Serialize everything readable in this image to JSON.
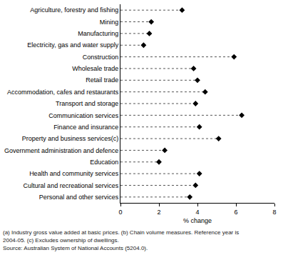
{
  "chart_data": {
    "type": "dot",
    "orientation": "horizontal",
    "x_label": "% change",
    "categories": [
      "Agriculture, forestry and fishing",
      "Mining",
      "Manufacturing",
      "Electricity, gas and water supply",
      "Construction",
      "Wholesale trade",
      "Retail trade",
      "Accommodation, cafes and restaurants",
      "Transport and storage",
      "Communication services",
      "Finance and insurance",
      "Property and business services(c)",
      "Government administration and defence",
      "Education",
      "Health and community services",
      "Cultural and recreational services",
      "Personal and other services"
    ],
    "values": [
      3.2,
      1.6,
      1.5,
      1.2,
      5.9,
      3.8,
      4.0,
      4.4,
      3.9,
      6.3,
      4.1,
      5.1,
      2.3,
      2.0,
      4.1,
      3.9,
      3.6
    ],
    "color": "#000000",
    "marker": "diamond",
    "line_style": "dash",
    "xlim": [
      0,
      8
    ],
    "xticks": [
      0,
      2,
      4,
      6,
      8
    ],
    "grid": false,
    "annotations": [
      "(a) Industry gross value added at basic prices. (b) Chain volume measures. Reference year is",
      "2004-05. (c) Excludes ownership of dwellings.",
      "Source: Australian System of National Accounts (5204.0)."
    ]
  }
}
